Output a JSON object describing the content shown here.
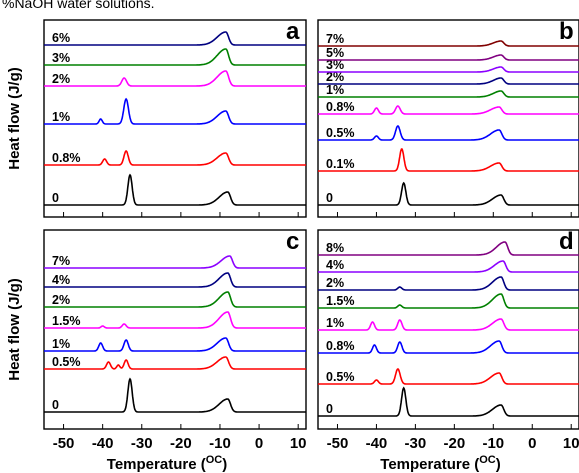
{
  "caption": "%NaOH water solutions.",
  "colors": {
    "black": "#000000",
    "red": "#ff0000",
    "blue": "#0000ff",
    "magenta": "#ff00ff",
    "green": "#008000",
    "navy": "#000080",
    "purple": "#8b00ff",
    "dark_magenta": "#800080",
    "dark_red": "#800000"
  },
  "chart_data": [
    {
      "type": "line",
      "panel": "a",
      "panel_label": "a",
      "ylabel": "Heat flow (J/g)",
      "xlabel": "",
      "x_ticks": [],
      "xlim": [
        -55,
        12
      ],
      "grid": false,
      "series": [
        {
          "label": "0",
          "color": "#000000",
          "peaks": [
            {
              "x": -33,
              "h": 30,
              "w": 0.55
            },
            {
              "x": -8,
              "h": 13,
              "w": 2.2,
              "tail": 0.9
            }
          ]
        },
        {
          "label": "0.8%",
          "color": "#ff0000",
          "peaks": [
            {
              "x": -39.5,
              "h": 6,
              "w": 0.5
            },
            {
              "x": -34,
              "h": 14,
              "w": 0.55
            },
            {
              "x": -8.5,
              "h": 12,
              "w": 2.2,
              "tail": 0.9
            }
          ]
        },
        {
          "label": "1%",
          "color": "#0000ff",
          "peaks": [
            {
              "x": -40.5,
              "h": 5,
              "w": 0.4
            },
            {
              "x": -34,
              "h": 25,
              "w": 0.6
            },
            {
              "x": -8.5,
              "h": 13,
              "w": 2.2,
              "tail": 0.9
            }
          ]
        },
        {
          "label": "2%",
          "color": "#ff00ff",
          "peaks": [
            {
              "x": -34.5,
              "h": 8,
              "w": 0.6
            },
            {
              "x": -8.5,
              "h": 15,
              "w": 2.2,
              "tail": 0.9
            }
          ]
        },
        {
          "label": "3%",
          "color": "#008000",
          "peaks": [
            {
              "x": -8.5,
              "h": 16,
              "w": 2.2,
              "tail": 0.9
            }
          ]
        },
        {
          "label": "6%",
          "color": "#000080",
          "peaks": [
            {
              "x": -8.5,
              "h": 13,
              "w": 2.2,
              "tail": 0.9
            }
          ]
        }
      ]
    },
    {
      "type": "line",
      "panel": "b",
      "panel_label": "b",
      "ylabel": "",
      "xlabel": "",
      "x_ticks": [],
      "xlim": [
        -55,
        12
      ],
      "grid": false,
      "series": [
        {
          "label": "0",
          "color": "#000000",
          "peaks": [
            {
              "x": -33,
              "h": 22,
              "w": 0.55
            },
            {
              "x": -8,
              "h": 10,
              "w": 2.2,
              "tail": 0.9
            }
          ]
        },
        {
          "label": "0.1%",
          "color": "#ff0000",
          "peaks": [
            {
              "x": -33.5,
              "h": 22,
              "w": 0.55
            },
            {
              "x": -8.5,
              "h": 8,
              "w": 2.2,
              "tail": 0.9
            }
          ]
        },
        {
          "label": "0.5%",
          "color": "#0000ff",
          "peaks": [
            {
              "x": -40,
              "h": 4,
              "w": 0.5
            },
            {
              "x": -34.5,
              "h": 14,
              "w": 0.6
            },
            {
              "x": -8.5,
              "h": 10,
              "w": 2.2,
              "tail": 0.9
            }
          ]
        },
        {
          "label": "0.8%",
          "color": "#ff00ff",
          "peaks": [
            {
              "x": -40,
              "h": 6,
              "w": 0.5
            },
            {
              "x": -34.5,
              "h": 8,
              "w": 0.6
            },
            {
              "x": -8.5,
              "h": 7,
              "w": 2.2,
              "tail": 0.9
            }
          ]
        },
        {
          "label": "1%",
          "color": "#008000",
          "peaks": [
            {
              "x": -8,
              "h": 6,
              "w": 2.0,
              "tail": 0.9
            }
          ]
        },
        {
          "label": "2%",
          "color": "#000080",
          "peaks": [
            {
              "x": -8,
              "h": 6,
              "w": 2.0,
              "tail": 0.9
            }
          ]
        },
        {
          "label": "3%",
          "color": "#8b00ff",
          "peaks": [
            {
              "x": -8,
              "h": 5,
              "w": 2.0,
              "tail": 0.9
            }
          ]
        },
        {
          "label": "5%",
          "color": "#800080",
          "peaks": [
            {
              "x": -8,
              "h": 5,
              "w": 2.0,
              "tail": 0.9
            }
          ]
        },
        {
          "label": "7%",
          "color": "#800000",
          "peaks": [
            {
              "x": -8,
              "h": 5,
              "w": 2.0,
              "tail": 0.9
            }
          ]
        }
      ]
    },
    {
      "type": "line",
      "panel": "c",
      "panel_label": "c",
      "ylabel": "Heat flow (J/g)",
      "xlabel": "Temperature (°C)",
      "xlabel_main": "Temperature (",
      "xlabel_unit": "OC",
      "xlabel_close": ")",
      "x_ticks": [
        -50,
        -40,
        -30,
        -20,
        -10,
        0,
        10
      ],
      "x_tick_labels": [
        "-50",
        "-40",
        "-30",
        "-20",
        "-10",
        "0",
        "10"
      ],
      "xlim": [
        -55,
        12
      ],
      "grid": false,
      "series": [
        {
          "label": "0",
          "color": "#000000",
          "peaks": [
            {
              "x": -33,
              "h": 33,
              "w": 0.55
            },
            {
              "x": -8,
              "h": 13,
              "w": 2.2,
              "tail": 0.9
            }
          ]
        },
        {
          "label": "0.5%",
          "color": "#ff0000",
          "peaks": [
            {
              "x": -38.5,
              "h": 7,
              "w": 0.5
            },
            {
              "x": -36,
              "h": 4,
              "w": 0.4
            },
            {
              "x": -34,
              "h": 9,
              "w": 0.5
            },
            {
              "x": -8.5,
              "h": 12,
              "w": 2.2,
              "tail": 0.9
            }
          ]
        },
        {
          "label": "1%",
          "color": "#0000ff",
          "peaks": [
            {
              "x": -40.5,
              "h": 8,
              "w": 0.5
            },
            {
              "x": -34,
              "h": 11,
              "w": 0.55
            },
            {
              "x": -8.5,
              "h": 13,
              "w": 2.2,
              "tail": 0.9
            }
          ]
        },
        {
          "label": "1.5%",
          "color": "#ff00ff",
          "peaks": [
            {
              "x": -40,
              "h": 2,
              "w": 0.4
            },
            {
              "x": -34.5,
              "h": 4,
              "w": 0.5
            },
            {
              "x": -8,
              "h": 16,
              "w": 2.2,
              "tail": 0.9
            }
          ]
        },
        {
          "label": "2%",
          "color": "#008000",
          "peaks": [
            {
              "x": -8,
              "h": 15,
              "w": 2.2,
              "tail": 0.9
            }
          ]
        },
        {
          "label": "4%",
          "color": "#000080",
          "peaks": [
            {
              "x": -8,
              "h": 14,
              "w": 2.2,
              "tail": 0.9
            }
          ]
        },
        {
          "label": "7%",
          "color": "#8b00ff",
          "peaks": [
            {
              "x": -7.5,
              "h": 12,
              "w": 2.2,
              "tail": 0.9
            }
          ]
        }
      ]
    },
    {
      "type": "line",
      "panel": "d",
      "panel_label": "d",
      "ylabel": "",
      "xlabel": "Temperature (°C)",
      "xlabel_main": "Temperature (",
      "xlabel_unit": "OC",
      "xlabel_close": ")",
      "x_ticks": [
        -50,
        -40,
        -30,
        -20,
        -10,
        0,
        10
      ],
      "x_tick_labels": [
        "-50",
        "-40",
        "-30",
        "-20",
        "-10",
        "0",
        "10"
      ],
      "xlim": [
        -55,
        12
      ],
      "grid": false,
      "series": [
        {
          "label": "0",
          "color": "#000000",
          "peaks": [
            {
              "x": -33,
              "h": 28,
              "w": 0.55
            },
            {
              "x": -8,
              "h": 11,
              "w": 2.2,
              "tail": 0.9
            }
          ]
        },
        {
          "label": "0.5%",
          "color": "#ff0000",
          "peaks": [
            {
              "x": -40,
              "h": 4,
              "w": 0.5
            },
            {
              "x": -34.5,
              "h": 15,
              "w": 0.6
            },
            {
              "x": -8.5,
              "h": 11,
              "w": 2.2,
              "tail": 0.9
            }
          ]
        },
        {
          "label": "0.8%",
          "color": "#0000ff",
          "peaks": [
            {
              "x": -40.5,
              "h": 8,
              "w": 0.5
            },
            {
              "x": -34,
              "h": 11,
              "w": 0.55
            },
            {
              "x": -8.5,
              "h": 12,
              "w": 2.2,
              "tail": 0.9
            }
          ]
        },
        {
          "label": "1%",
          "color": "#ff00ff",
          "peaks": [
            {
              "x": -41,
              "h": 8,
              "w": 0.5
            },
            {
              "x": -34,
              "h": 10,
              "w": 0.55
            },
            {
              "x": -8,
              "h": 11,
              "w": 2.2,
              "tail": 0.9
            }
          ]
        },
        {
          "label": "1.5%",
          "color": "#008000",
          "peaks": [
            {
              "x": -34,
              "h": 3,
              "w": 0.5
            },
            {
              "x": -8,
              "h": 14,
              "w": 2.2,
              "tail": 0.9
            }
          ]
        },
        {
          "label": "2%",
          "color": "#000080",
          "peaks": [
            {
              "x": -34,
              "h": 3,
              "w": 0.5
            },
            {
              "x": -8,
              "h": 13,
              "w": 2.2,
              "tail": 0.9
            }
          ]
        },
        {
          "label": "4%",
          "color": "#8b00ff",
          "peaks": [
            {
              "x": -7.5,
              "h": 11,
              "w": 2.2,
              "tail": 0.9
            }
          ]
        },
        {
          "label": "8%",
          "color": "#800080",
          "peaks": [
            {
              "x": -7,
              "h": 13,
              "w": 2.2,
              "tail": 0.9
            }
          ]
        }
      ]
    }
  ]
}
